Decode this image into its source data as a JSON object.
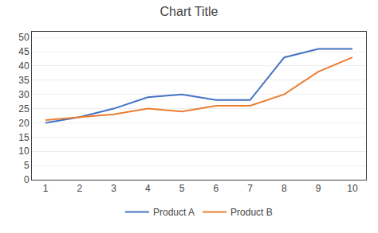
{
  "chart_data": {
    "type": "line",
    "title": "Chart Title",
    "x": [
      1,
      2,
      3,
      4,
      5,
      6,
      7,
      8,
      9,
      10
    ],
    "series": [
      {
        "name": "Product A",
        "color": "#4472C4",
        "values": [
          20,
          22,
          25,
          29,
          30,
          28,
          28,
          43,
          46,
          46
        ]
      },
      {
        "name": "Product B",
        "color": "#ED7D31",
        "values": [
          21,
          22,
          23,
          25,
          24,
          26,
          26,
          30,
          38,
          43
        ]
      }
    ],
    "xlim": [
      0.6,
      10.4
    ],
    "xticks": [
      1,
      2,
      3,
      4,
      5,
      6,
      7,
      8,
      9,
      10
    ],
    "ylim": [
      0,
      52
    ],
    "yticks": [
      0,
      5,
      10,
      15,
      20,
      25,
      30,
      35,
      40,
      45,
      50
    ],
    "grid": "y",
    "legend": "bottom"
  }
}
